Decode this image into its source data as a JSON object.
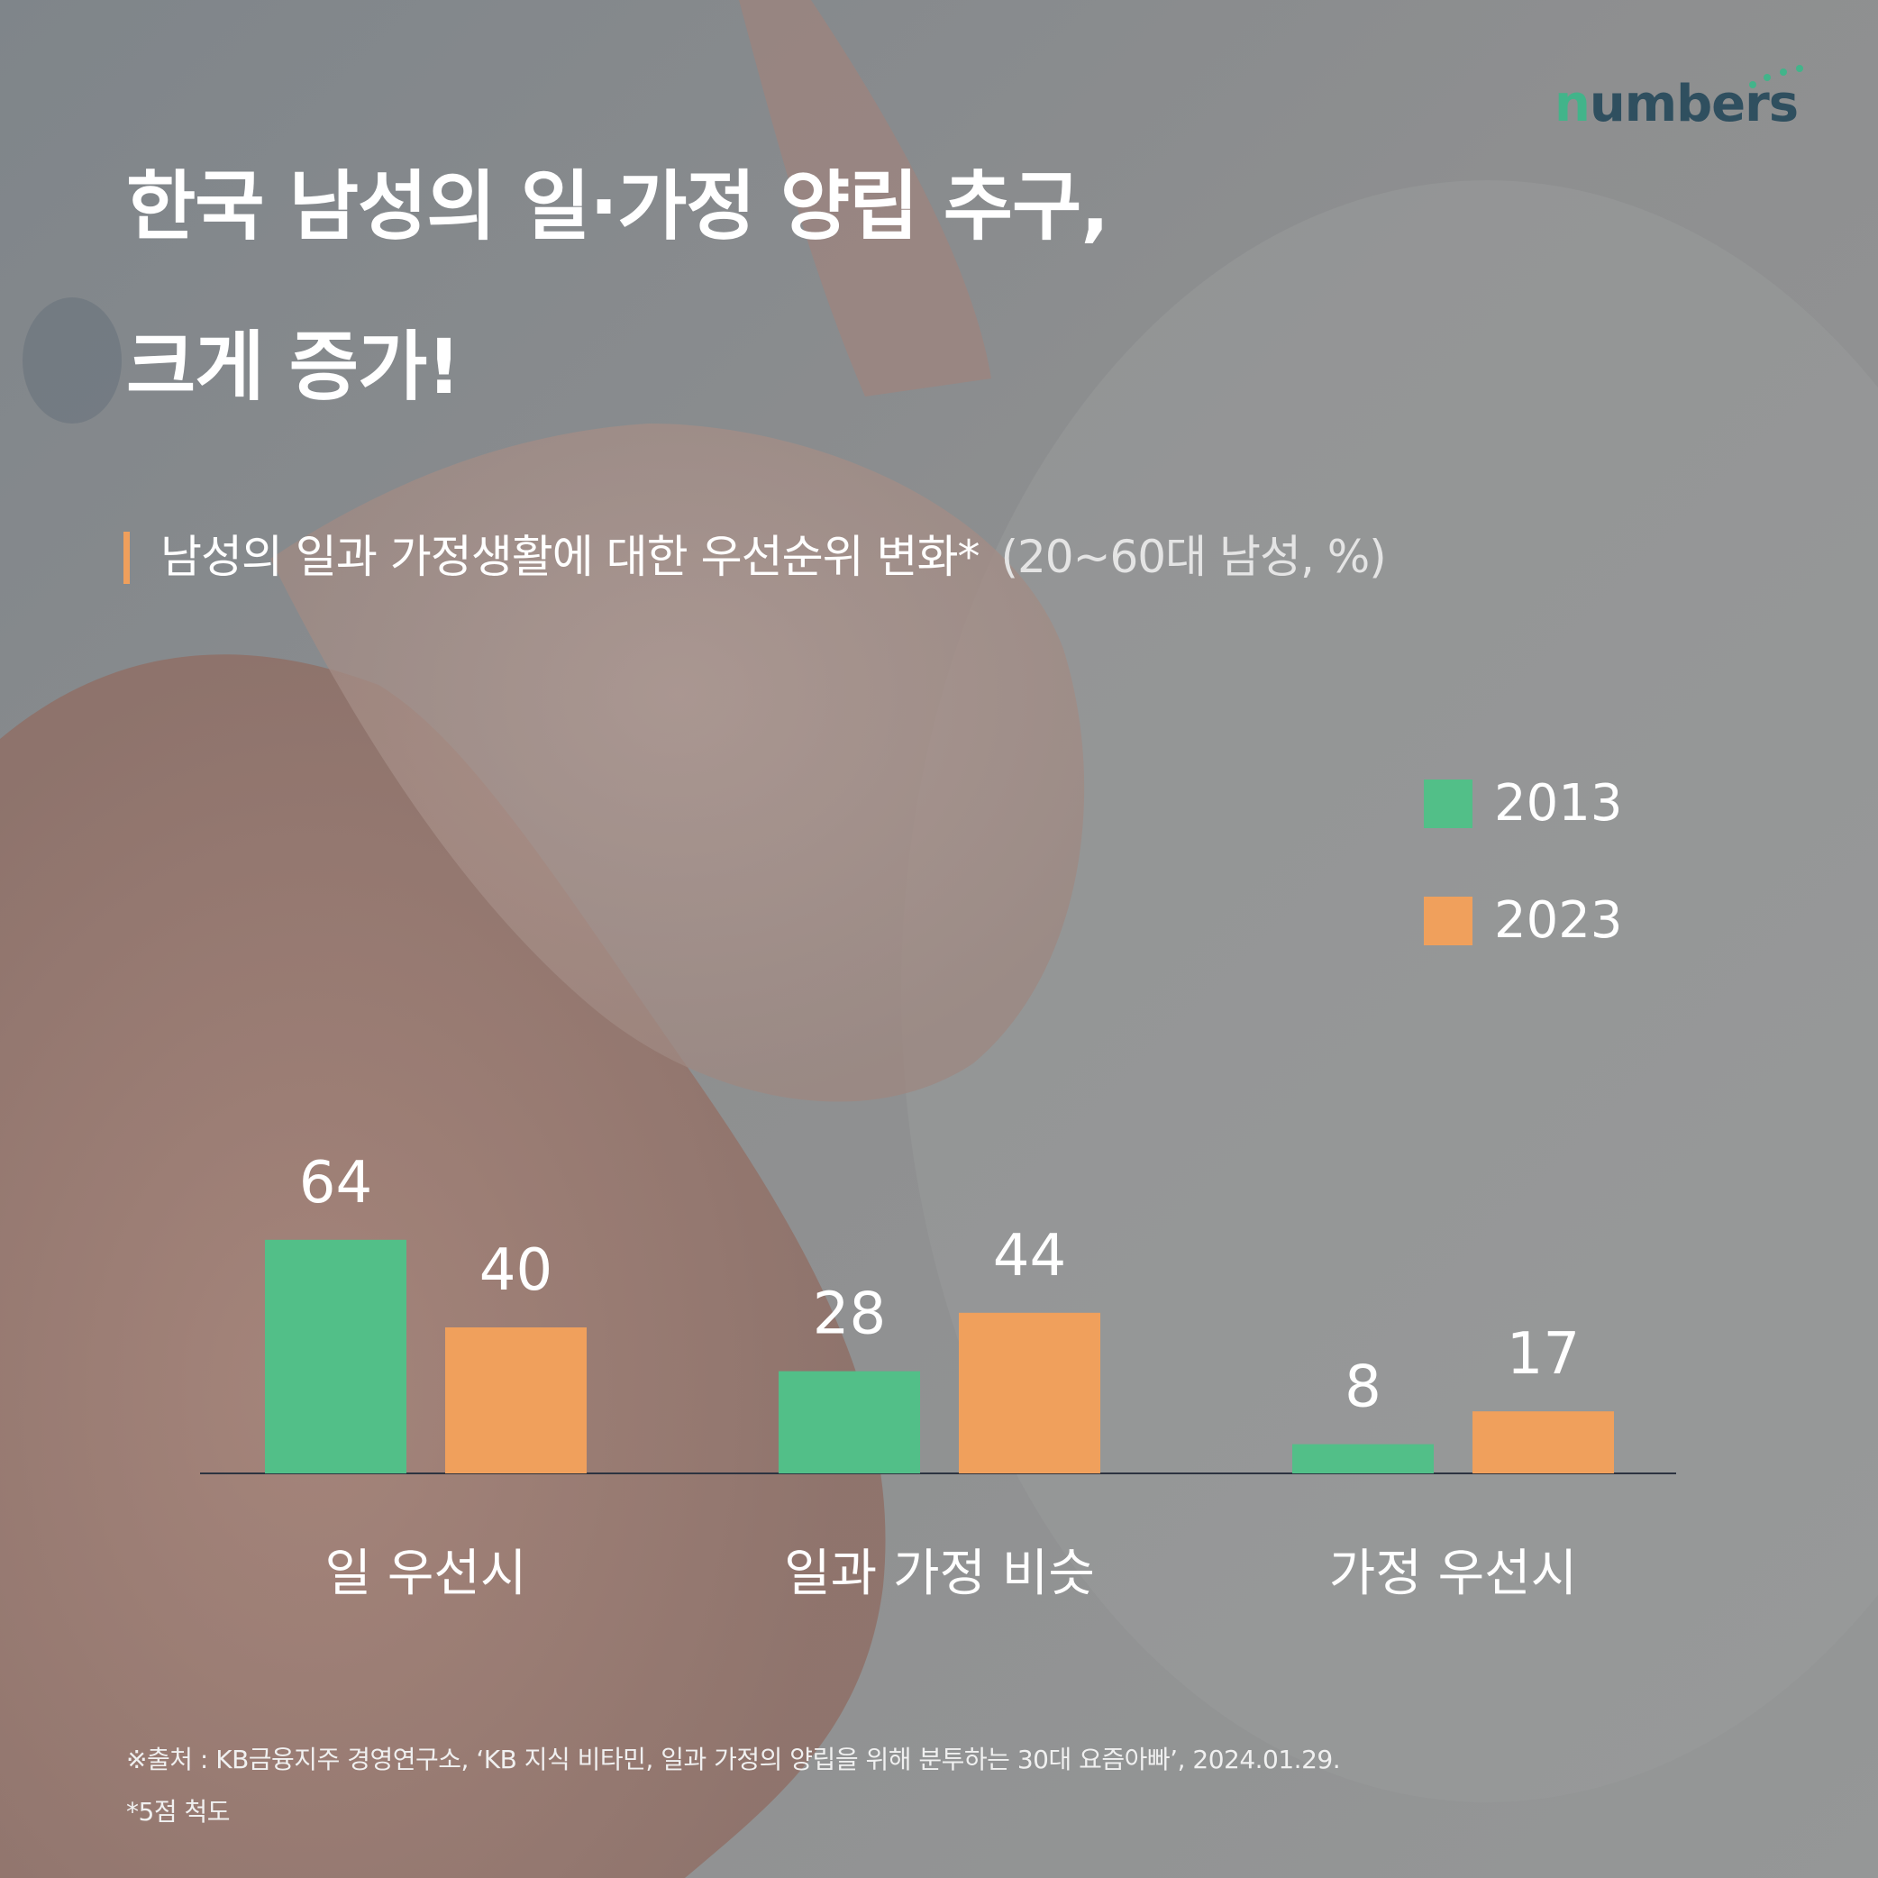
{
  "logo": {
    "text_first": "n",
    "text_rest": "umbers",
    "dot_color": "#42b48a"
  },
  "title": {
    "line1": "한국 남성의 일·가정 양립 추구,",
    "line2": "크게 증가!"
  },
  "subtitle": {
    "text": "남성의 일과 가정생활에 대한 우선순위 변화*",
    "unit": "(20~60대 남성, %)",
    "bar_color": "#ef9f5c"
  },
  "chart_data": {
    "type": "bar",
    "categories": [
      "일 우선시",
      "일과 가정 비슷",
      "가정 우선시"
    ],
    "series": [
      {
        "name": "2013",
        "values": [
          64,
          28,
          8
        ],
        "color": "#52bf88"
      },
      {
        "name": "2023",
        "values": [
          40,
          44,
          17
        ],
        "color": "#f0a05c"
      }
    ],
    "ylim": [
      0,
      64
    ],
    "grid": false,
    "legend_position": "top-right",
    "data_labels": true
  },
  "footer": {
    "source": "※출처 : KB금융지주 경영연구소, ‘KB 지식 비타민, 일과 가정의 양립을 위해 분투하는 30대 요즘아빠’, 2024.01.29.",
    "note": "*5점 척도"
  }
}
